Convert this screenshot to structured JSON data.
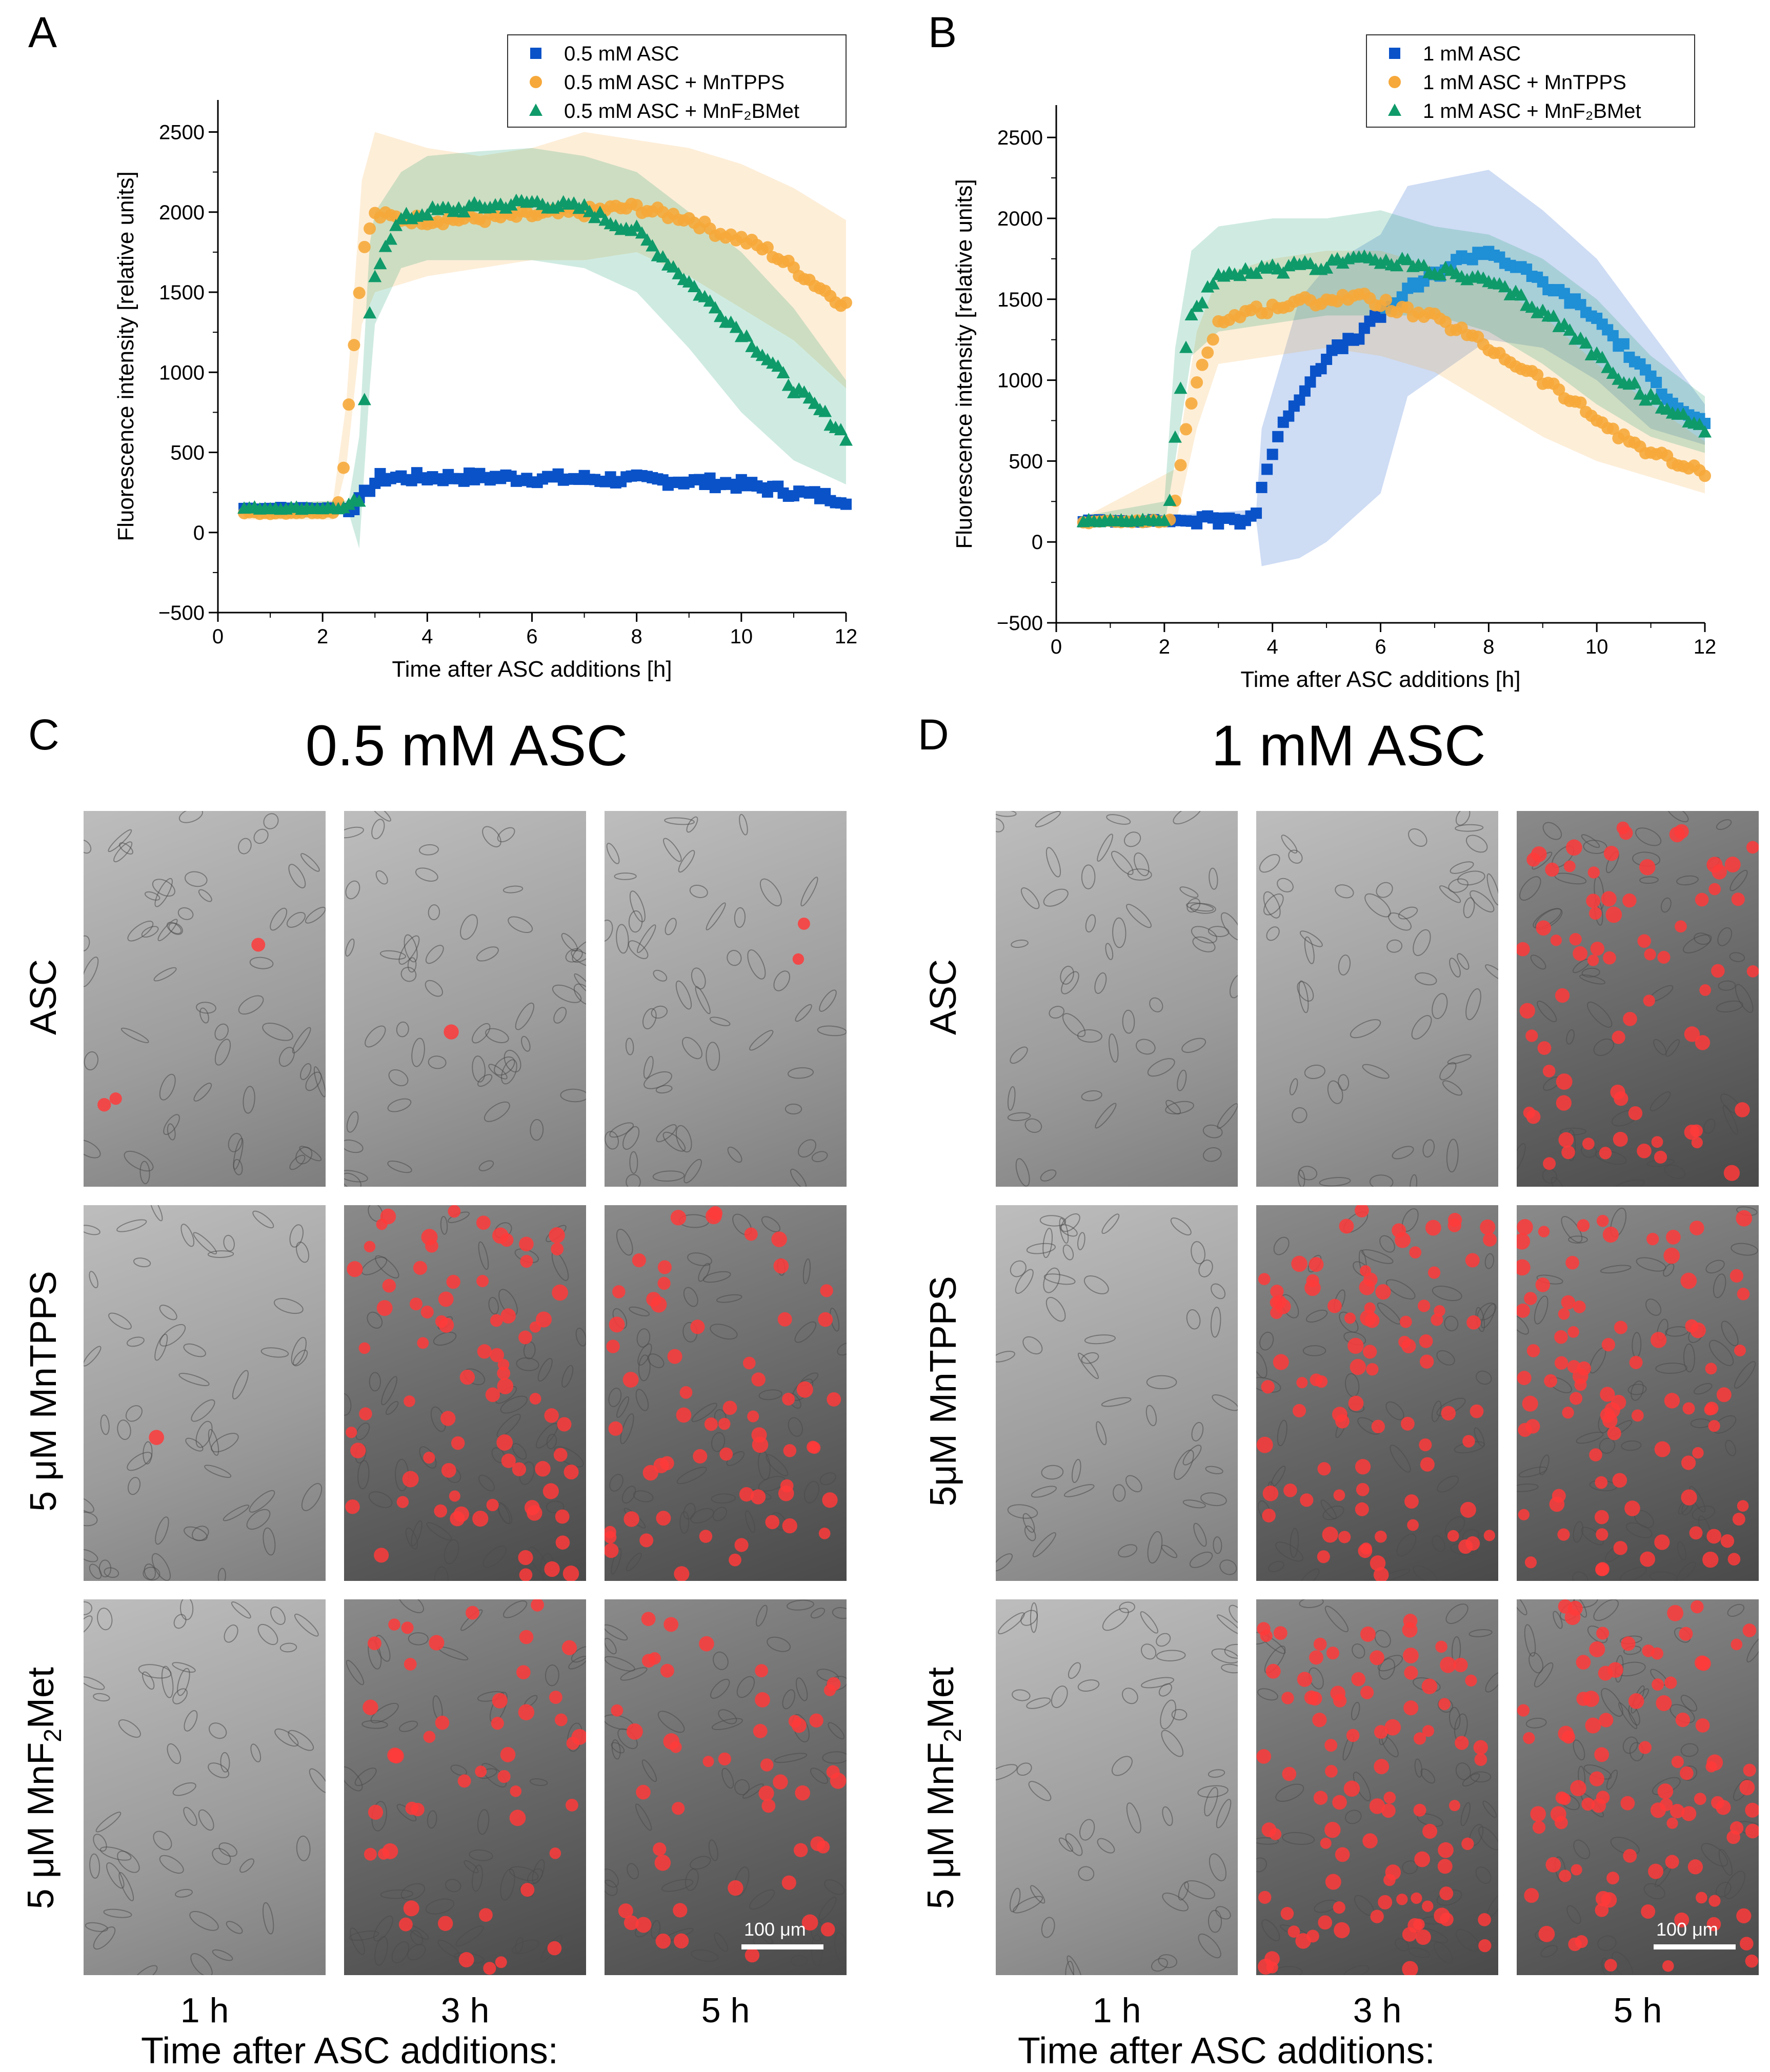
{
  "panel_labels": {
    "a": "A",
    "b": "B",
    "c": "C",
    "d": "D"
  },
  "colors": {
    "asc": "#0a52c8",
    "asc_light": "#1f8fd6",
    "mntpps": "#f6a83a",
    "mnf2bmet": "#0f9a6a",
    "cell_red": "#ff3a3a"
  },
  "icons": {
    "square": "square-marker",
    "circle": "circle-marker",
    "triangle": "triangle-marker"
  },
  "chart_data": [
    {
      "type": "scatter",
      "panel": "A",
      "title": "",
      "xlabel": "Time after ASC additions [h]",
      "ylabel": "Fluorescence intensity [relative units]",
      "xlim": [
        0,
        12
      ],
      "ylim": [
        -500,
        2700
      ],
      "xticks": [
        "0",
        "2",
        "4",
        "6",
        "8",
        "10",
        "12"
      ],
      "yticks": [
        "−500",
        "0",
        "500",
        "1000",
        "1500",
        "2000",
        "2500"
      ],
      "legend_position": "top-right",
      "legend": [
        "0.5 mM ASC",
        "0.5 mM ASC + MnTPPS",
        "0.5 mM ASC + MnF₂BMet"
      ],
      "series": [
        {
          "name": "0.5 mM ASC",
          "marker": "square",
          "color": "#0a52c8",
          "points": [
            [
              0.5,
              150
            ],
            [
              2.5,
              150
            ],
            [
              2.7,
              190
            ],
            [
              2.9,
              280
            ],
            [
              3.1,
              340
            ],
            [
              4,
              345
            ],
            [
              5,
              345
            ],
            [
              6,
              340
            ],
            [
              7,
              335
            ],
            [
              8,
              330
            ],
            [
              9,
              320
            ],
            [
              10,
              300
            ],
            [
              11,
              250
            ],
            [
              12,
              205
            ]
          ],
          "band": [
            [
              0.5,
              150,
              150
            ],
            [
              12,
              205,
              205
            ]
          ]
        },
        {
          "name": "0.5 mM ASC + MnTPPS",
          "marker": "circle",
          "color": "#f6a83a",
          "points": [
            [
              0.5,
              120
            ],
            [
              2.2,
              130
            ],
            [
              2.35,
              220
            ],
            [
              2.45,
              600
            ],
            [
              2.55,
              1000
            ],
            [
              2.65,
              1350
            ],
            [
              2.75,
              1700
            ],
            [
              2.9,
              1900
            ],
            [
              3,
              1980
            ],
            [
              3.5,
              1960
            ],
            [
              4,
              1950
            ],
            [
              5,
              1960
            ],
            [
              6,
              1980
            ],
            [
              7,
              2000
            ],
            [
              7.5,
              2020
            ],
            [
              8,
              2030
            ],
            [
              8.5,
              1990
            ],
            [
              9,
              1960
            ],
            [
              9.5,
              1880
            ],
            [
              10,
              1830
            ],
            [
              10.5,
              1760
            ],
            [
              11,
              1650
            ],
            [
              11.5,
              1530
            ],
            [
              12,
              1420
            ]
          ],
          "band": [
            [
              0.5,
              80,
              160
            ],
            [
              2.2,
              80,
              200
            ],
            [
              2.45,
              400,
              800
            ],
            [
              2.75,
              1300,
              2200
            ],
            [
              3,
              1500,
              2500
            ],
            [
              4,
              1600,
              2400
            ],
            [
              5,
              1650,
              2350
            ],
            [
              6,
              1700,
              2400
            ],
            [
              7,
              1700,
              2500
            ],
            [
              8,
              1750,
              2450
            ],
            [
              9,
              1600,
              2400
            ],
            [
              10,
              1400,
              2300
            ],
            [
              11,
              1200,
              2150
            ],
            [
              12,
              900,
              1950
            ]
          ]
        },
        {
          "name": "0.5 mM ASC + MnF₂BMet",
          "marker": "triangle",
          "color": "#0f9a6a",
          "points": [
            [
              0.5,
              150
            ],
            [
              2.5,
              150
            ],
            [
              2.7,
              200
            ],
            [
              2.8,
              800
            ],
            [
              2.9,
              1350
            ],
            [
              3,
              1600
            ],
            [
              3.2,
              1800
            ],
            [
              3.5,
              1950
            ],
            [
              4,
              2000
            ],
            [
              5,
              2030
            ],
            [
              6,
              2060
            ],
            [
              7,
              2020
            ],
            [
              7.5,
              1940
            ],
            [
              8,
              1880
            ],
            [
              8.5,
              1720
            ],
            [
              9,
              1560
            ],
            [
              9.5,
              1400
            ],
            [
              10,
              1250
            ],
            [
              10.5,
              1080
            ],
            [
              11,
              900
            ],
            [
              11.5,
              760
            ],
            [
              12,
              600
            ]
          ],
          "band": [
            [
              0.5,
              120,
              180
            ],
            [
              2.5,
              120,
              200
            ],
            [
              2.7,
              -100,
              600
            ],
            [
              2.9,
              900,
              1800
            ],
            [
              3,
              1300,
              2000
            ],
            [
              3.5,
              1650,
              2250
            ],
            [
              4,
              1700,
              2350
            ],
            [
              5,
              1700,
              2380
            ],
            [
              6,
              1700,
              2400
            ],
            [
              7,
              1650,
              2350
            ],
            [
              8,
              1500,
              2250
            ],
            [
              9,
              1150,
              2000
            ],
            [
              10,
              750,
              1750
            ],
            [
              11,
              450,
              1400
            ],
            [
              12,
              300,
              950
            ]
          ]
        }
      ]
    },
    {
      "type": "scatter",
      "panel": "B",
      "title": "",
      "xlabel": "Time after ASC additions [h]",
      "ylabel": "Fluorescence intensity [relative units]",
      "xlim": [
        0,
        12
      ],
      "ylim": [
        -500,
        2700
      ],
      "xticks": [
        "0",
        "2",
        "4",
        "6",
        "8",
        "10",
        "12"
      ],
      "yticks": [
        "−500",
        "0",
        "500",
        "1000",
        "1500",
        "2000",
        "2500"
      ],
      "legend_position": "top-right",
      "legend": [
        "1 mM ASC",
        "1 mM ASC + MnTPPS",
        "1 mM ASC + MnF₂BMet"
      ],
      "series": [
        {
          "name": "1 mM ASC",
          "marker": "square",
          "color": "#0a52c8",
          "points": [
            [
              0.5,
              130
            ],
            [
              2,
              130
            ],
            [
              3,
              135
            ],
            [
              3.5,
              140
            ],
            [
              3.7,
              180
            ],
            [
              3.8,
              350
            ],
            [
              4,
              550
            ],
            [
              4.3,
              800
            ],
            [
              4.6,
              950
            ],
            [
              5,
              1150
            ],
            [
              5.5,
              1250
            ],
            [
              6,
              1400
            ],
            [
              6.5,
              1550
            ],
            [
              7,
              1650
            ],
            [
              7.5,
              1750
            ],
            [
              8,
              1800
            ],
            [
              8.5,
              1700
            ],
            [
              9,
              1600
            ],
            [
              9.5,
              1500
            ],
            [
              10,
              1380
            ],
            [
              10.5,
              1200
            ],
            [
              11,
              1000
            ],
            [
              11.5,
              850
            ],
            [
              12,
              720
            ]
          ],
          "band": [
            [
              0.5,
              130,
              130
            ],
            [
              3.7,
              130,
              200
            ],
            [
              3.8,
              -150,
              700
            ],
            [
              4.5,
              -100,
              1500
            ],
            [
              5,
              0,
              1700
            ],
            [
              6,
              300,
              1900
            ],
            [
              6.5,
              900,
              2200
            ],
            [
              8,
              1250,
              2300
            ],
            [
              9,
              1200,
              2050
            ],
            [
              10,
              1000,
              1750
            ],
            [
              11,
              700,
              1300
            ],
            [
              12,
              600,
              850
            ]
          ]
        },
        {
          "name": "1 mM ASC + MnTPPS",
          "marker": "circle",
          "color": "#f6a83a",
          "points": [
            [
              0.5,
              120
            ],
            [
              2.1,
              130
            ],
            [
              2.2,
              250
            ],
            [
              2.4,
              700
            ],
            [
              2.6,
              1000
            ],
            [
              2.8,
              1200
            ],
            [
              3,
              1350
            ],
            [
              3.5,
              1420
            ],
            [
              4,
              1450
            ],
            [
              4.5,
              1480
            ],
            [
              5,
              1500
            ],
            [
              5.5,
              1520
            ],
            [
              6,
              1480
            ],
            [
              6.5,
              1420
            ],
            [
              7,
              1380
            ],
            [
              7.5,
              1300
            ],
            [
              8,
              1200
            ],
            [
              8.5,
              1100
            ],
            [
              9,
              1000
            ],
            [
              9.5,
              880
            ],
            [
              10,
              760
            ],
            [
              10.5,
              640
            ],
            [
              11,
              560
            ],
            [
              11.5,
              480
            ],
            [
              12,
              420
            ]
          ],
          "band": [
            [
              0.5,
              100,
              150
            ],
            [
              2.2,
              100,
              450
            ],
            [
              2.6,
              700,
              1300
            ],
            [
              3,
              1100,
              1650
            ],
            [
              4,
              1150,
              1750
            ],
            [
              5,
              1200,
              1800
            ],
            [
              6,
              1150,
              1800
            ],
            [
              7,
              1050,
              1700
            ],
            [
              8,
              850,
              1600
            ],
            [
              9,
              650,
              1400
            ],
            [
              10,
              500,
              1100
            ],
            [
              11,
              400,
              850
            ],
            [
              12,
              300,
              620
            ]
          ]
        },
        {
          "name": "1 mM ASC + MnF₂BMet",
          "marker": "triangle",
          "color": "#0f9a6a",
          "points": [
            [
              0.5,
              130
            ],
            [
              2,
              130
            ],
            [
              2.1,
              250
            ],
            [
              2.2,
              650
            ],
            [
              2.35,
              1100
            ],
            [
              2.5,
              1400
            ],
            [
              2.8,
              1550
            ],
            [
              3,
              1620
            ],
            [
              3.5,
              1660
            ],
            [
              4,
              1680
            ],
            [
              4.5,
              1700
            ],
            [
              5,
              1700
            ],
            [
              5.5,
              1780
            ],
            [
              6,
              1720
            ],
            [
              6.5,
              1720
            ],
            [
              7,
              1680
            ],
            [
              7.5,
              1640
            ],
            [
              8,
              1600
            ],
            [
              8.5,
              1520
            ],
            [
              9,
              1420
            ],
            [
              9.5,
              1300
            ],
            [
              10,
              1150
            ],
            [
              10.5,
              1000
            ],
            [
              11,
              880
            ],
            [
              11.5,
              780
            ],
            [
              12,
              700
            ]
          ],
          "band": [
            [
              0.5,
              110,
              160
            ],
            [
              2,
              100,
              250
            ],
            [
              2.2,
              500,
              1200
            ],
            [
              2.5,
              1150,
              1800
            ],
            [
              3,
              1300,
              1950
            ],
            [
              4,
              1350,
              2000
            ],
            [
              5,
              1400,
              2000
            ],
            [
              6,
              1400,
              2050
            ],
            [
              7,
              1400,
              1950
            ],
            [
              8,
              1300,
              1900
            ],
            [
              9,
              1100,
              1750
            ],
            [
              10,
              850,
              1500
            ],
            [
              11,
              650,
              1150
            ],
            [
              12,
              550,
              900
            ]
          ]
        }
      ]
    }
  ],
  "panel_c": {
    "title": "0.5 mM ASC",
    "rows": [
      "ASC",
      "5 μM MnTPPS",
      "5 μM MnF2Met"
    ],
    "row3_parts": {
      "pre": "5 μM MnF",
      "sub": "2",
      "post": "Met"
    },
    "cols": [
      "1 h",
      "3 h",
      "5 h"
    ],
    "footer": "Time after ASC additions:",
    "scale_bar": "100 μm",
    "red_cells": [
      [
        3,
        1,
        2
      ],
      [
        1,
        75,
        60
      ],
      [
        0,
        45,
        45
      ]
    ]
  },
  "panel_d": {
    "title": "1 mM ASC",
    "rows": [
      "ASC",
      "5μM MnTPPS",
      "5 μM MnF2Met"
    ],
    "row3_parts": {
      "pre": "5 μM MnF",
      "sub": "2",
      "post": "Met"
    },
    "cols": [
      "1 h",
      "3 h",
      "5 h"
    ],
    "footer": "Time after ASC additions:",
    "scale_bar": "100 μm",
    "red_cells": [
      [
        0,
        0,
        70
      ],
      [
        0,
        85,
        85
      ],
      [
        0,
        90,
        90
      ]
    ]
  }
}
